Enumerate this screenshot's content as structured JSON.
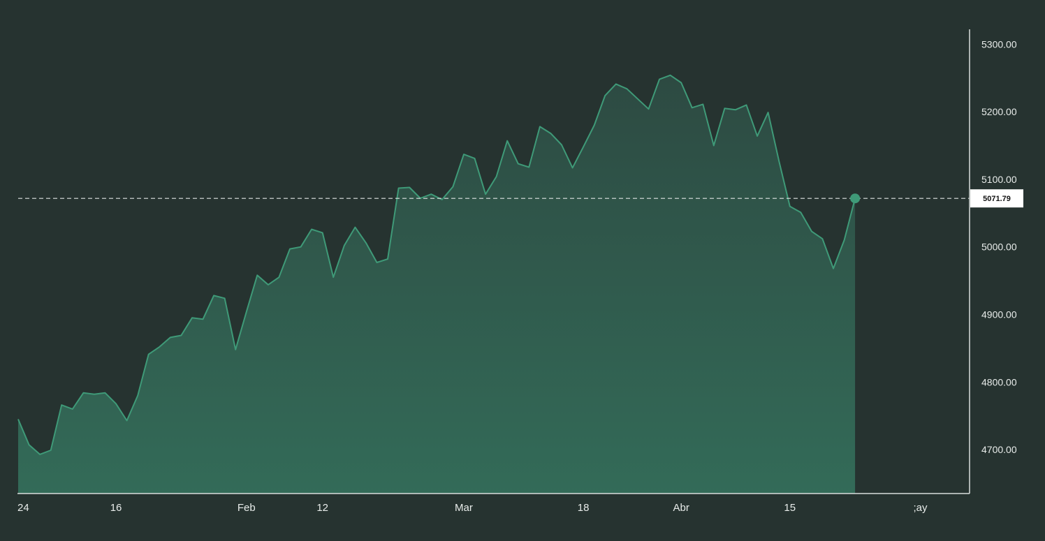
{
  "colors": {
    "background": "#263330",
    "line": "#3f9a78",
    "area_top": "#2d4a42",
    "area_bottom": "#336b58",
    "axis": "#d9dedc",
    "guide": "#dfe4e2"
  },
  "chart_data": {
    "type": "area",
    "xlabel": "",
    "ylabel": "",
    "ylim": [
      4635,
      5322
    ],
    "y_ticks": [
      "5300.00",
      "5200.00",
      "5100.00",
      "5000.00",
      "4900.00",
      "4800.00",
      "4700.00"
    ],
    "x_ticks": [
      {
        "label": "24",
        "index": 0
      },
      {
        "label": "16",
        "index": 9
      },
      {
        "label": "Feb",
        "index": 21
      },
      {
        "label": "12",
        "index": 28
      },
      {
        "label": "Mar",
        "index": 41
      },
      {
        "label": "18",
        "index": 52
      },
      {
        "label": "Abr",
        "index": 61
      },
      {
        "label": "15",
        "index": 71
      },
      {
        "label": ";ay",
        "index": 83
      }
    ],
    "values": [
      4745,
      4707,
      4693,
      4699,
      4766,
      4760,
      4784,
      4782,
      4784,
      4768,
      4743,
      4780,
      4841,
      4852,
      4866,
      4869,
      4895,
      4893,
      4928,
      4924,
      4848,
      4904,
      4958,
      4944,
      4955,
      4997,
      5000,
      5026,
      5021,
      4955,
      5002,
      5029,
      5006,
      4977,
      4982,
      5087,
      5088,
      5072,
      5078,
      5070,
      5089,
      5137,
      5131,
      5078,
      5104,
      5157,
      5123,
      5118,
      5178,
      5168,
      5151,
      5117,
      5148,
      5180,
      5224,
      5241,
      5234,
      5219,
      5204,
      5248,
      5254,
      5243,
      5206,
      5211,
      5150,
      5205,
      5203,
      5210,
      5164,
      5199,
      5127,
      5060,
      5051,
      5023,
      5012,
      4968,
      5010,
      5071.79
    ],
    "last_price": "5071.79"
  }
}
